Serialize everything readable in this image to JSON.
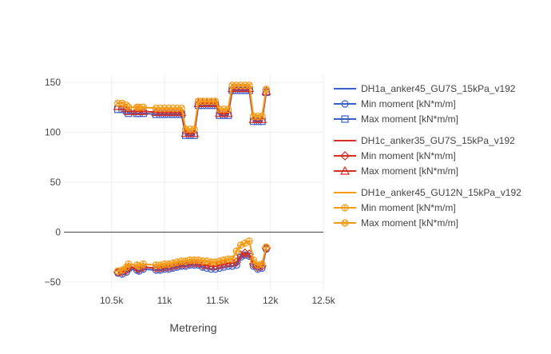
{
  "chart_data": {
    "type": "line",
    "title": "",
    "xlabel": "Metrering",
    "ylabel": "",
    "xlim": [
      10050,
      12500
    ],
    "ylim": [
      -58,
      158
    ],
    "x_ticks": [
      {
        "value": 10500,
        "label": "10.5k"
      },
      {
        "value": 11000,
        "label": "11k"
      },
      {
        "value": 11500,
        "label": "11.5k"
      },
      {
        "value": 12000,
        "label": "12k"
      },
      {
        "value": 12500,
        "label": "12.5k"
      }
    ],
    "y_ticks": [
      {
        "value": -50,
        "label": "−50"
      },
      {
        "value": 0,
        "label": "0"
      },
      {
        "value": 50,
        "label": "50"
      },
      {
        "value": 100,
        "label": "100"
      },
      {
        "value": 150,
        "label": "150"
      }
    ],
    "grid": true,
    "zero_line": true,
    "legend_position": "right",
    "x": [
      10560,
      10600,
      10640,
      10660,
      10740,
      10760,
      10800,
      10920,
      10960,
      11000,
      11040,
      11080,
      11120,
      11160,
      11200,
      11240,
      11280,
      11320,
      11360,
      11400,
      11440,
      11480,
      11520,
      11560,
      11600,
      11640,
      11680,
      11720,
      11760,
      11800,
      11840,
      11880,
      11920,
      11960
    ],
    "groups": [
      {
        "name": "DH1a_anker45_GU7S_15kPa_v192",
        "color": "#3a5fcd",
        "series": [
          {
            "name": "Min moment [kN*m/m]",
            "marker": "circle",
            "values": [
              -41,
              -42,
              -40,
              -37,
              -38,
              -39,
              -37,
              -38,
              -38,
              -37,
              -37,
              -36,
              -35,
              -34,
              -34,
              -33,
              -33,
              -33,
              -35,
              -36,
              -37,
              -37,
              -36,
              -35,
              -34,
              -34,
              -33,
              -25,
              -23,
              -24,
              -34,
              -37,
              -36,
              -17
            ]
          },
          {
            "name": "Max moment [kN*m/m]",
            "marker": "square",
            "values": [
              123,
              123,
              122,
              119,
              119,
              119,
              119,
              118,
              118,
              118,
              118,
              118,
              118,
              118,
              97,
              97,
              97,
              127,
              127,
              127,
              127,
              127,
              117,
              117,
              117,
              142,
              142,
              142,
              142,
              142,
              111,
              111,
              111,
              140
            ]
          }
        ]
      },
      {
        "name": "DH1c_anker35_GU7S_15kPa_v192",
        "color": "#d62d20",
        "series": [
          {
            "name": "Min moment [kN*m/m]",
            "marker": "diamond",
            "values": [
              -40,
              -40,
              -38,
              -35,
              -36,
              -37,
              -35,
              -36,
              -36,
              -35,
              -35,
              -34,
              -33,
              -32,
              -32,
              -31,
              -31,
              -31,
              -33,
              -33,
              -34,
              -34,
              -33,
              -32,
              -31,
              -31,
              -30,
              -23,
              -21,
              -22,
              -32,
              -35,
              -34,
              -16
            ]
          },
          {
            "name": "Max moment [kN*m/m]",
            "marker": "triangle",
            "values": [
              126,
              126,
              124,
              121,
              121,
              121,
              121,
              120,
              120,
              120,
              120,
              120,
              120,
              120,
              99,
              99,
              99,
              129,
              129,
              129,
              129,
              129,
              119,
              119,
              119,
              144,
              144,
              144,
              144,
              144,
              113,
              113,
              113,
              141
            ]
          }
        ]
      },
      {
        "name": "DH1e_anker45_GU12N_15kPa_v192",
        "color": "#f59a12",
        "series": [
          {
            "name": "Min moment [kN*m/m]",
            "marker": "circle-cross",
            "values": [
              -39,
              -38,
              -35,
              -32,
              -33,
              -34,
              -32,
              -33,
              -33,
              -32,
              -32,
              -31,
              -30,
              -29,
              -29,
              -28,
              -28,
              -28,
              -29,
              -29,
              -30,
              -30,
              -29,
              -28,
              -27,
              -27,
              -19,
              -13,
              -11,
              -9,
              -28,
              -33,
              -32,
              -15
            ]
          },
          {
            "name": "Max moment [kN*m/m]",
            "marker": "circle-x",
            "values": [
              129,
              129,
              127,
              125,
              125,
              125,
              125,
              124,
              124,
              124,
              124,
              124,
              124,
              124,
              103,
              103,
              103,
              131,
              131,
              131,
              131,
              131,
              123,
              123,
              123,
              147,
              147,
              147,
              147,
              147,
              116,
              116,
              116,
              143
            ]
          }
        ]
      }
    ]
  }
}
